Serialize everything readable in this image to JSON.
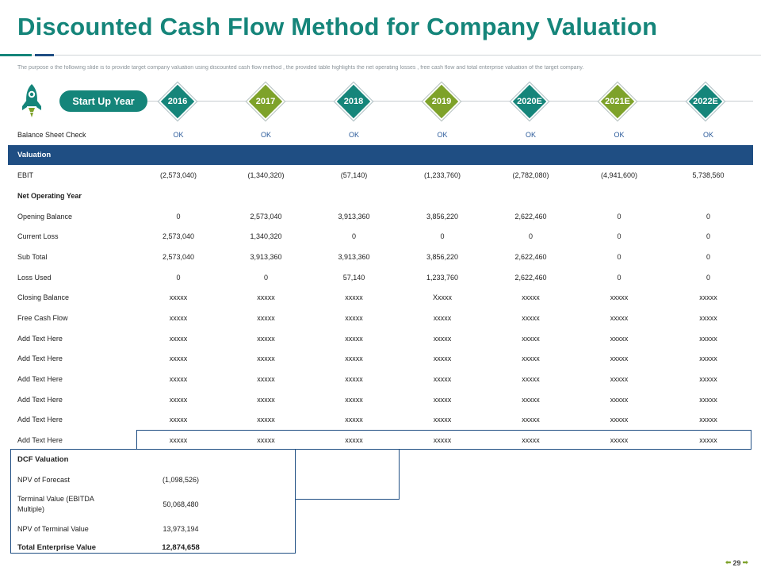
{
  "title": "Discounted Cash Flow Method for Company Valuation",
  "subtitle": "The purpose o the following slide is to provide target company valuation using discounted cash flow method , the provided table highlights the net operating losses , free cash flow and total enterprise valuation of the target company.",
  "timeline": {
    "start_label": "Start Up Year",
    "years": [
      {
        "label": "2016",
        "color": "#15857a"
      },
      {
        "label": "2017",
        "color": "#7ea22a"
      },
      {
        "label": "2018",
        "color": "#15857a"
      },
      {
        "label": "2019",
        "color": "#7ea22a"
      },
      {
        "label": "2020E",
        "color": "#15857a"
      },
      {
        "label": "2021E",
        "color": "#7ea22a"
      },
      {
        "label": "2022E",
        "color": "#15857a"
      }
    ]
  },
  "table": {
    "rows": [
      {
        "type": "ok",
        "label": "Balance Sheet Check",
        "values": [
          "OK",
          "OK",
          "OK",
          "OK",
          "OK",
          "OK",
          "OK"
        ]
      },
      {
        "type": "section",
        "label": "Valuation"
      },
      {
        "type": "data",
        "label": "EBIT",
        "values": [
          "(2,573,040)",
          "(1,340,320)",
          "(57,140)",
          "(1,233,760)",
          "(2,782,080)",
          "(4,941,600)",
          "5,738,560"
        ]
      },
      {
        "type": "bold",
        "label": "Net Operating Year",
        "values": [
          "",
          "",
          "",
          "",
          "",
          "",
          ""
        ]
      },
      {
        "type": "data",
        "label": "Opening Balance",
        "values": [
          "0",
          "2,573,040",
          "3,913,360",
          "3,856,220",
          "2,622,460",
          "0",
          "0"
        ]
      },
      {
        "type": "data",
        "label": "Current Loss",
        "values": [
          "2,573,040",
          "1,340,320",
          "0",
          "0",
          "0",
          "0",
          "0"
        ]
      },
      {
        "type": "data",
        "label": "Sub Total",
        "values": [
          "2,573,040",
          "3,913,360",
          "3,913,360",
          "3,856,220",
          "2,622,460",
          "0",
          "0"
        ]
      },
      {
        "type": "data",
        "label": "Loss Used",
        "values": [
          "0",
          "0",
          "57,140",
          "1,233,760",
          "2,622,460",
          "0",
          "0"
        ]
      },
      {
        "type": "data",
        "label": "Closing Balance",
        "values": [
          "xxxxx",
          "xxxxx",
          "xxxxx",
          "Xxxxx",
          "xxxxx",
          "xxxxx",
          "xxxxx"
        ]
      },
      {
        "type": "data",
        "label": "Free Cash Flow",
        "values": [
          "xxxxx",
          "xxxxx",
          "xxxxx",
          "xxxxx",
          "xxxxx",
          "xxxxx",
          "xxxxx"
        ]
      },
      {
        "type": "data",
        "label": "Add Text Here",
        "values": [
          "xxxxx",
          "xxxxx",
          "xxxxx",
          "xxxxx",
          "xxxxx",
          "xxxxx",
          "xxxxx"
        ]
      },
      {
        "type": "data",
        "label": "Add Text Here",
        "values": [
          "xxxxx",
          "xxxxx",
          "xxxxx",
          "xxxxx",
          "xxxxx",
          "xxxxx",
          "xxxxx"
        ]
      },
      {
        "type": "data",
        "label": "Add Text Here",
        "values": [
          "xxxxx",
          "xxxxx",
          "xxxxx",
          "xxxxx",
          "xxxxx",
          "xxxxx",
          "xxxxx"
        ]
      },
      {
        "type": "data",
        "label": "Add Text Here",
        "values": [
          "xxxxx",
          "xxxxx",
          "xxxxx",
          "xxxxx",
          "xxxxx",
          "xxxxx",
          "xxxxx"
        ]
      },
      {
        "type": "data",
        "label": "Add Text Here",
        "values": [
          "xxxxx",
          "xxxxx",
          "xxxxx",
          "xxxxx",
          "xxxxx",
          "xxxxx",
          "xxxxx"
        ]
      },
      {
        "type": "data",
        "label": "Add Text Here",
        "values": [
          "xxxxx",
          "xxxxx",
          "xxxxx",
          "xxxxx",
          "xxxxx",
          "xxxxx",
          "xxxxx"
        ]
      }
    ]
  },
  "dcf": {
    "heading": "DCF Valuation",
    "rows": [
      {
        "label": "NPV of Forecast",
        "value": "(1,098,526)"
      },
      {
        "label": "Terminal Value (EBITDA Multiple)",
        "value": "50,068,480"
      },
      {
        "label": "NPV of Terminal Value",
        "value": "13,973,194"
      }
    ],
    "total": {
      "label": "Total Enterprise Value",
      "value": "12,874,658"
    }
  },
  "page_number": "29",
  "colors": {
    "teal": "#15857a",
    "green": "#7ea22a",
    "navy": "#1f4e83"
  },
  "icons": {
    "header": "rocket-icon",
    "footer": [
      "arrow-left-icon",
      "arrow-right-icon"
    ]
  }
}
